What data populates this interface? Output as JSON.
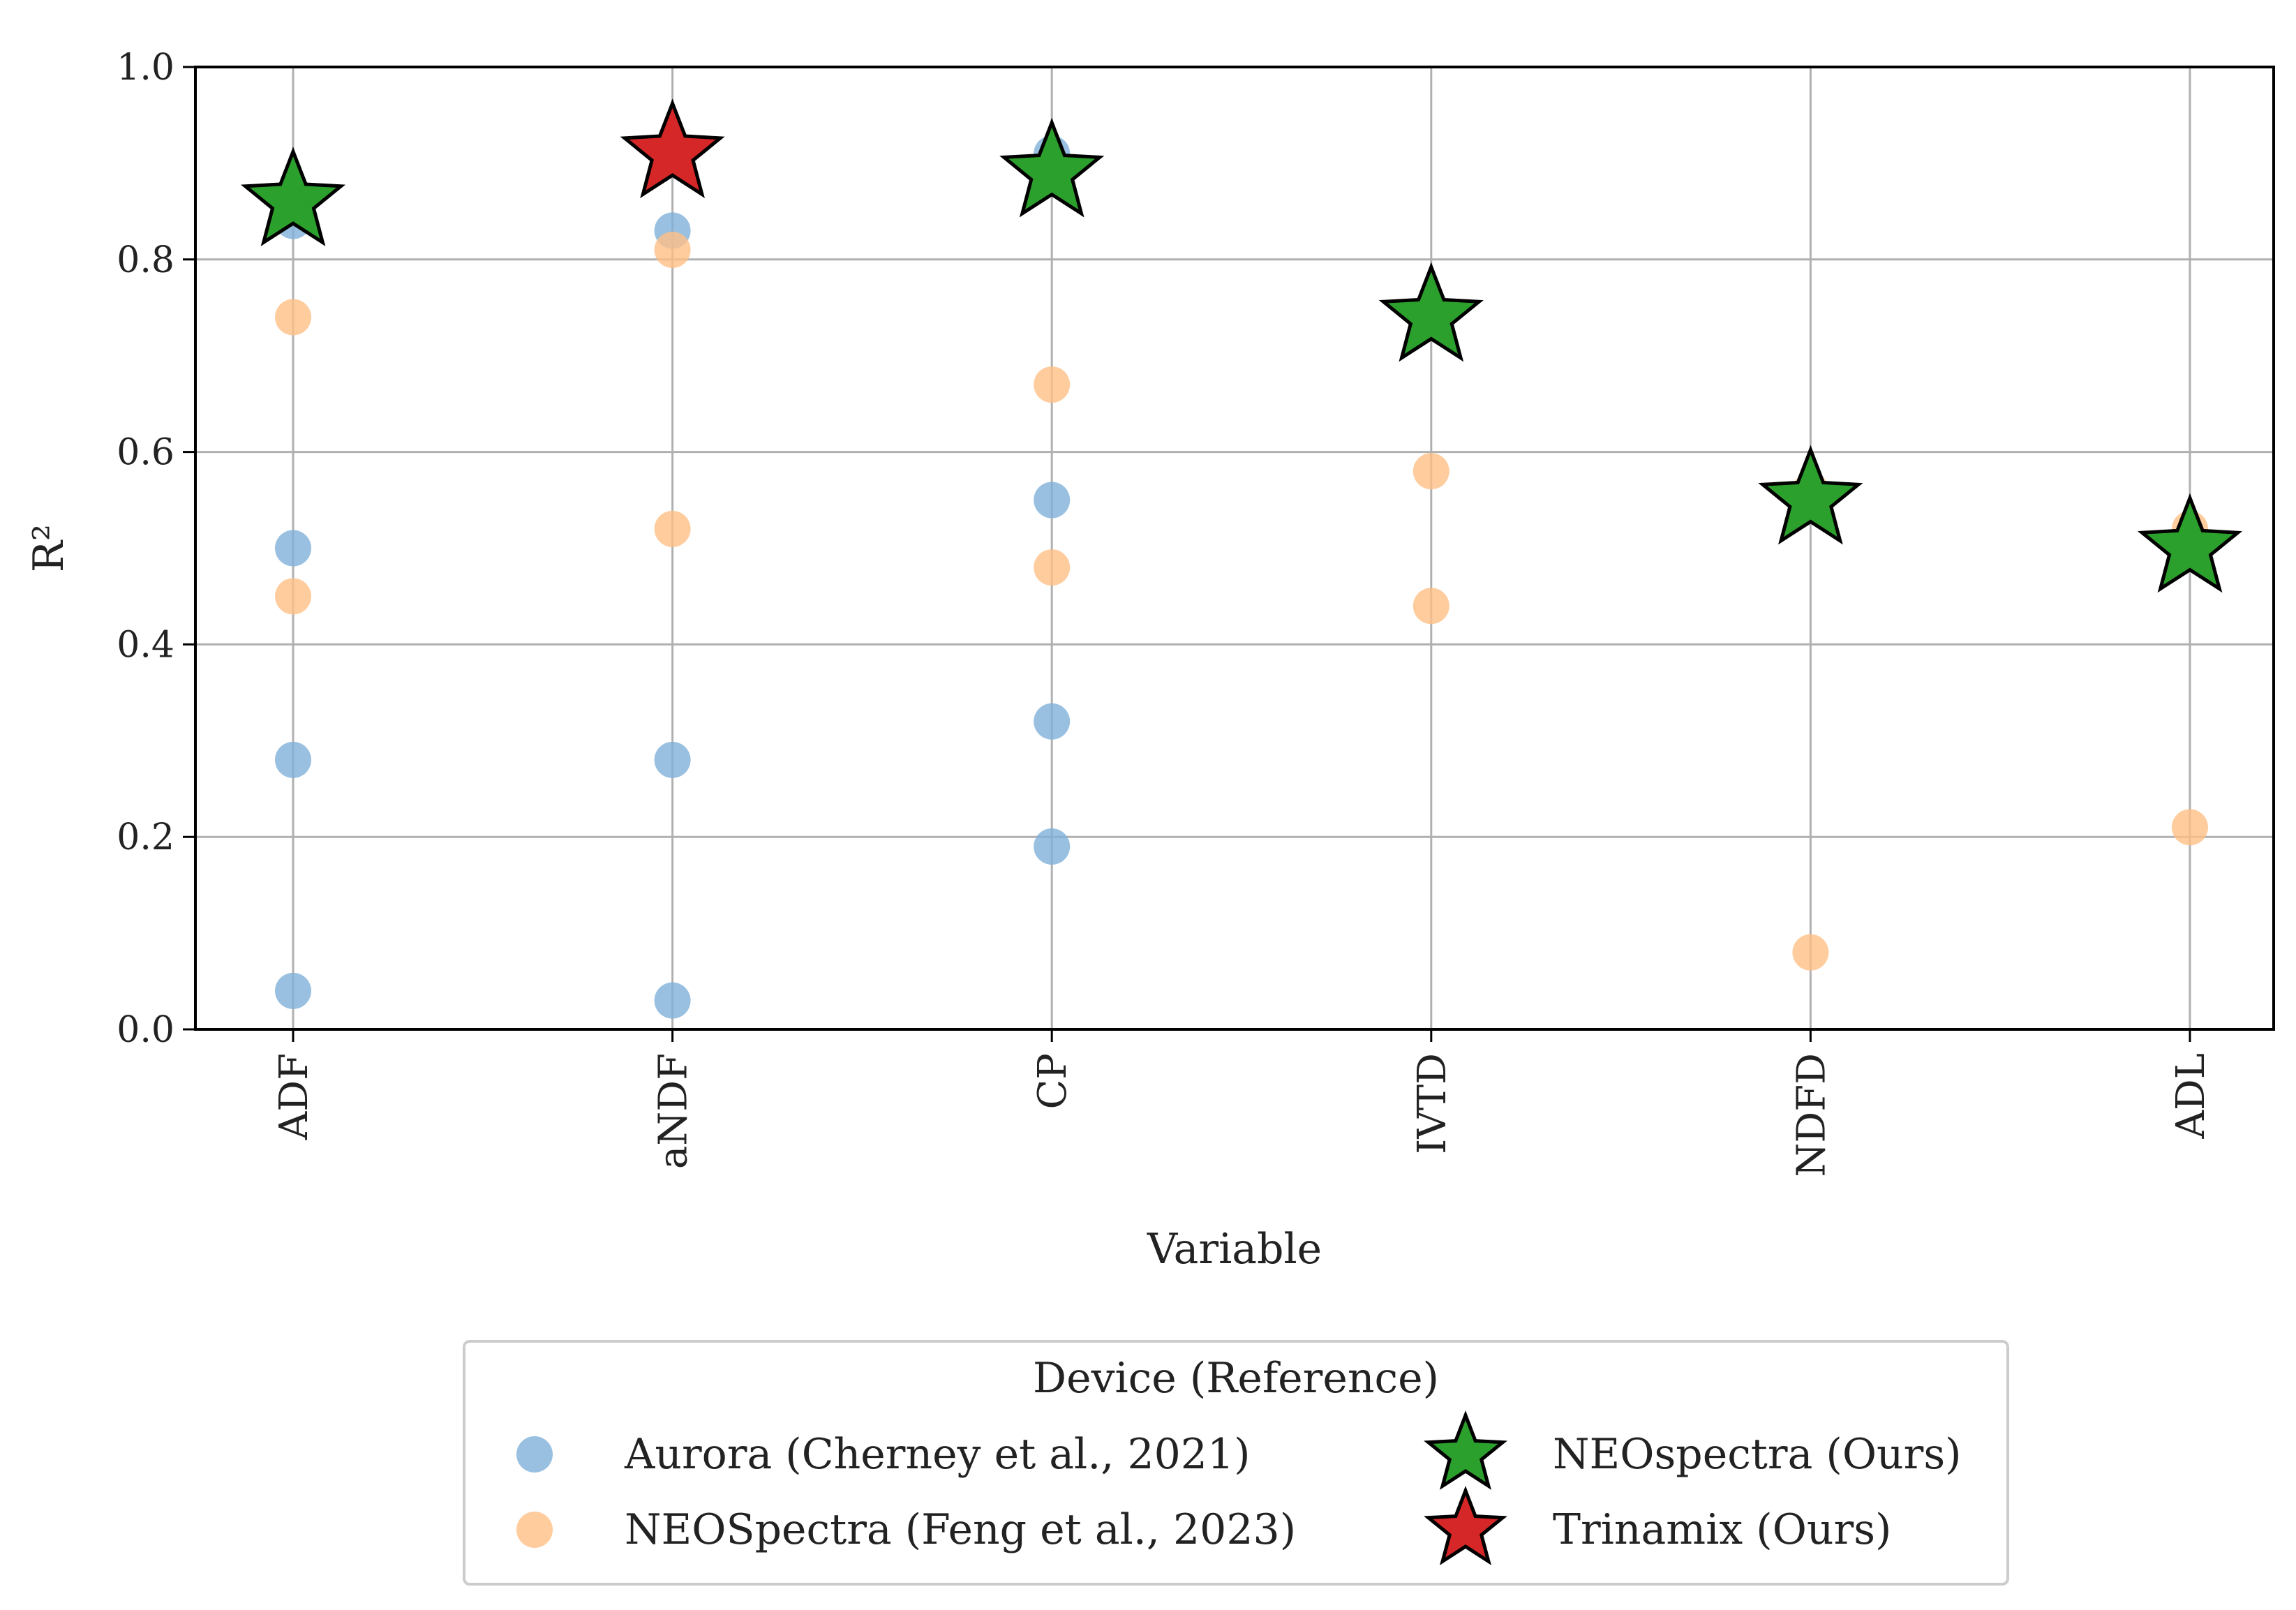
{
  "chart_data": {
    "type": "scatter",
    "title": "",
    "xlabel": "Variable",
    "ylabel": "R²",
    "categories": [
      "ADF",
      "aNDF",
      "CP",
      "IVTD",
      "NDFD",
      "ADL"
    ],
    "ylim": [
      0.0,
      1.0
    ],
    "yticks": [
      "0.0",
      "0.2",
      "0.4",
      "0.6",
      "0.8",
      "1.0"
    ],
    "grid": true,
    "series": [
      {
        "name": "Aurora (Cherney et al., 2021)",
        "marker": "circle",
        "color": "#7fb0d8",
        "points": [
          {
            "category": "ADF",
            "value": 0.84
          },
          {
            "category": "ADF",
            "value": 0.5
          },
          {
            "category": "ADF",
            "value": 0.28
          },
          {
            "category": "ADF",
            "value": 0.04
          },
          {
            "category": "aNDF",
            "value": 0.83
          },
          {
            "category": "aNDF",
            "value": 0.28
          },
          {
            "category": "aNDF",
            "value": 0.03
          },
          {
            "category": "CP",
            "value": 0.91
          },
          {
            "category": "CP",
            "value": 0.55
          },
          {
            "category": "CP",
            "value": 0.32
          },
          {
            "category": "CP",
            "value": 0.19
          }
        ]
      },
      {
        "name": "NEOSpectra (Feng et al., 2023)",
        "marker": "circle",
        "color": "#ffbf86",
        "points": [
          {
            "category": "ADF",
            "value": 0.74
          },
          {
            "category": "ADF",
            "value": 0.45
          },
          {
            "category": "aNDF",
            "value": 0.81
          },
          {
            "category": "aNDF",
            "value": 0.52
          },
          {
            "category": "CP",
            "value": 0.67
          },
          {
            "category": "CP",
            "value": 0.48
          },
          {
            "category": "IVTD",
            "value": 0.58
          },
          {
            "category": "IVTD",
            "value": 0.44
          },
          {
            "category": "NDFD",
            "value": 0.56
          },
          {
            "category": "NDFD",
            "value": 0.08
          },
          {
            "category": "ADL",
            "value": 0.52
          },
          {
            "category": "ADL",
            "value": 0.21
          }
        ]
      },
      {
        "name": "NEOspectra (Ours)",
        "marker": "star",
        "color": "#2ca02c",
        "points": [
          {
            "category": "ADF",
            "value": 0.86
          },
          {
            "category": "CP",
            "value": 0.89
          },
          {
            "category": "IVTD",
            "value": 0.74
          },
          {
            "category": "NDFD",
            "value": 0.55
          },
          {
            "category": "ADL",
            "value": 0.5
          }
        ]
      },
      {
        "name": "Trinamix (Ours)",
        "marker": "star",
        "color": "#d62728",
        "points": [
          {
            "category": "aNDF",
            "value": 0.91
          }
        ]
      }
    ],
    "legend": {
      "title": "Device (Reference)",
      "placement": "below-center",
      "columns": 2
    }
  }
}
